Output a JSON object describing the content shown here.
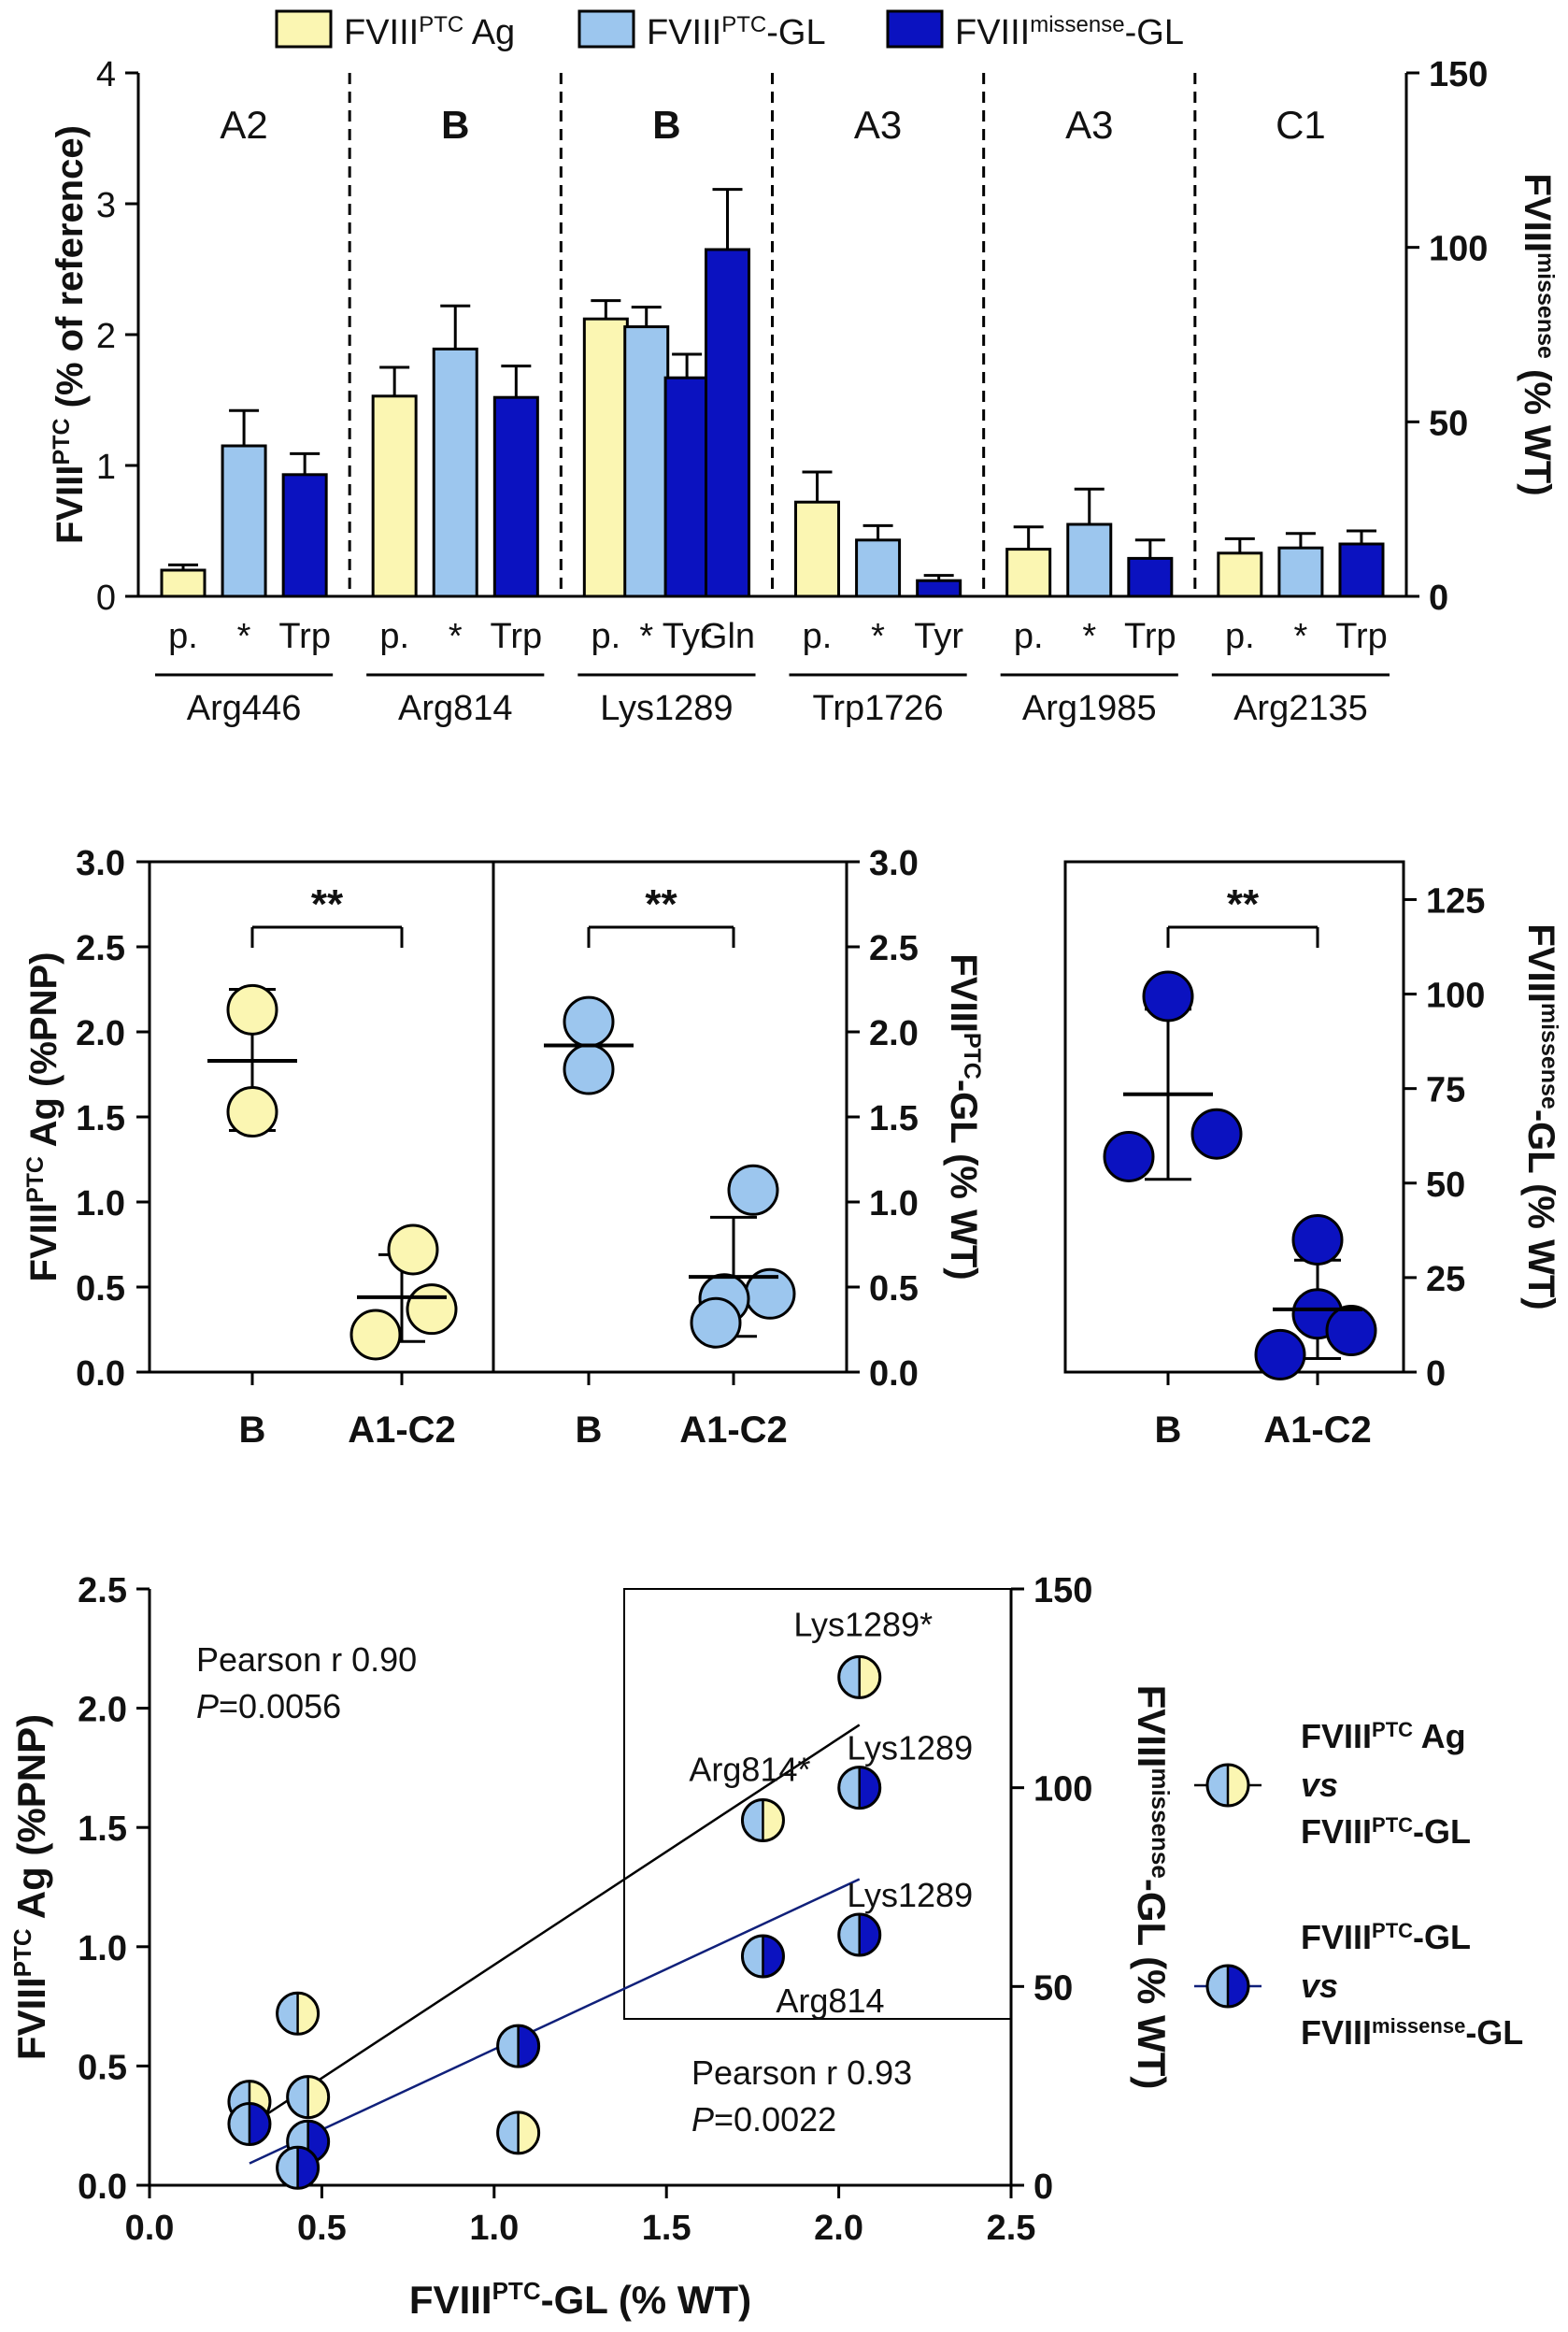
{
  "colors": {
    "ag": "#fbf6b2",
    "ptc_gl": "#9cc6ee",
    "missense_gl": "#0b12c0",
    "fit_ag": "#000000",
    "fit_missense": "#10207a"
  },
  "legend": [
    {
      "base": "FVIII",
      "sup": "PTC",
      "suffix": " Ag",
      "color_key": "ag"
    },
    {
      "base": "FVIII",
      "sup": "PTC",
      "suffix": "-GL",
      "color_key": "ptc_gl"
    },
    {
      "base": "FVIII",
      "sup": "missense",
      "suffix": "-GL",
      "color_key": "missense_gl"
    }
  ],
  "chart_data": [
    {
      "id": "panel-a",
      "type": "bar",
      "y_left": {
        "label_base": "FVIII",
        "label_sup": "PTC",
        "label_suffix": " (% of reference)",
        "lim": [
          0,
          4
        ],
        "ticks": [
          0,
          1,
          2,
          3,
          4
        ]
      },
      "y_right": {
        "label_base": "FVIII",
        "label_sup": "missense",
        "label_suffix": " (% WT)",
        "lim": [
          0,
          150
        ],
        "ticks": [
          0,
          50,
          100,
          150
        ]
      },
      "domains": [
        "A2",
        "B",
        "B",
        "A3",
        "A3",
        "C1"
      ],
      "domain_bold": [
        false,
        true,
        true,
        false,
        false,
        false
      ],
      "groups": [
        {
          "name": "Arg446",
          "bars": [
            {
              "label": "p.",
              "series": "ag",
              "value": 0.2,
              "err": 0.04
            },
            {
              "label": "*",
              "series": "ptc_gl",
              "value": 1.15,
              "err": 0.27
            },
            {
              "label": "Trp",
              "series": "missense_gl",
              "value": 0.93,
              "err": 0.16
            }
          ]
        },
        {
          "name": "Arg814",
          "bars": [
            {
              "label": "p.",
              "series": "ag",
              "value": 1.53,
              "err": 0.22
            },
            {
              "label": "*",
              "series": "ptc_gl",
              "value": 1.89,
              "err": 0.33
            },
            {
              "label": "Trp",
              "series": "missense_gl",
              "value": 1.52,
              "err": 0.24
            }
          ]
        },
        {
          "name": "Lys1289",
          "bars": [
            {
              "label": "p.",
              "series": "ag",
              "value": 2.12,
              "err": 0.14
            },
            {
              "label": "*",
              "series": "ptc_gl",
              "value": 2.06,
              "err": 0.15
            },
            {
              "label": "Tyr",
              "series": "missense_gl",
              "value": 1.67,
              "err": 0.18
            },
            {
              "label": "Gln",
              "series": "missense_gl",
              "value": 2.65,
              "err": 0.46
            }
          ]
        },
        {
          "name": "Trp1726",
          "bars": [
            {
              "label": "p.",
              "series": "ag",
              "value": 0.72,
              "err": 0.23
            },
            {
              "label": "*",
              "series": "ptc_gl",
              "value": 0.43,
              "err": 0.11
            },
            {
              "label": "Tyr",
              "series": "missense_gl",
              "value": 0.12,
              "err": 0.04
            }
          ]
        },
        {
          "name": "Arg1985",
          "bars": [
            {
              "label": "p.",
              "series": "ag",
              "value": 0.36,
              "err": 0.17
            },
            {
              "label": "*",
              "series": "ptc_gl",
              "value": 0.55,
              "err": 0.27
            },
            {
              "label": "Trp",
              "series": "missense_gl",
              "value": 0.29,
              "err": 0.14
            }
          ]
        },
        {
          "name": "Arg2135",
          "bars": [
            {
              "label": "p.",
              "series": "ag",
              "value": 0.33,
              "err": 0.11
            },
            {
              "label": "*",
              "series": "ptc_gl",
              "value": 0.37,
              "err": 0.11
            },
            {
              "label": "Trp",
              "series": "missense_gl",
              "value": 0.4,
              "err": 0.1
            }
          ]
        }
      ]
    },
    {
      "id": "panel-b-ag",
      "type": "scatter",
      "y_label_base": "FVIII",
      "y_label_sup": "PTC",
      "y_label_suffix": " Ag (%PNP)",
      "ylim": [
        0,
        3.0
      ],
      "ticks": [
        "0.0",
        "0.5",
        "1.0",
        "1.5",
        "2.0",
        "2.5",
        "3.0"
      ],
      "categories": [
        "B",
        "A1-C2"
      ],
      "significance": "**",
      "series": "ag",
      "groups": [
        {
          "category": "B",
          "points": [
            2.13,
            1.53
          ],
          "mean": 1.83,
          "sd_low": 1.42,
          "sd_high": 2.25
        },
        {
          "category": "A1-C2",
          "points": [
            0.72,
            0.37,
            0.22
          ],
          "mean": 0.44,
          "sd_low": 0.18,
          "sd_high": 0.69
        }
      ]
    },
    {
      "id": "panel-b-gl",
      "type": "scatter",
      "y_label_base": "FVIII",
      "y_label_sup": "PTC",
      "y_label_suffix": "-GL (% WT)",
      "ylim": [
        0,
        3.0
      ],
      "ticks": [
        "0.0",
        "0.5",
        "1.0",
        "1.5",
        "2.0",
        "2.5",
        "3.0"
      ],
      "categories": [
        "B",
        "A1-C2"
      ],
      "significance": "**",
      "series": "ptc_gl",
      "groups": [
        {
          "category": "B",
          "points": [
            2.06,
            1.78
          ],
          "mean": 1.92,
          "sd_low": 1.72,
          "sd_high": 2.12
        },
        {
          "category": "A1-C2",
          "points": [
            1.07,
            0.46,
            0.43,
            0.29
          ],
          "mean": 0.56,
          "sd_low": 0.21,
          "sd_high": 0.91
        }
      ]
    },
    {
      "id": "panel-b-missense",
      "type": "scatter",
      "y_label_base": "FVIII",
      "y_label_sup": "missense",
      "y_label_suffix": "-GL (% WT)",
      "ylim": [
        0,
        135
      ],
      "ticks": [
        "0",
        "25",
        "50",
        "75",
        "100",
        "125"
      ],
      "categories": [
        "B",
        "A1-C2"
      ],
      "significance": "**",
      "series": "missense_gl",
      "groups": [
        {
          "category": "B",
          "points": [
            99.4,
            63,
            57
          ],
          "mean": 73.5,
          "sd_low": 51,
          "sd_high": 96
        },
        {
          "category": "A1-C2",
          "points": [
            35,
            15.4,
            11,
            4.6
          ],
          "mean": 16.6,
          "sd_low": 3.6,
          "sd_high": 29.6
        }
      ]
    },
    {
      "id": "panel-c",
      "type": "scatter",
      "x_label_base": "FVIII",
      "x_label_sup": "PTC",
      "x_label_suffix": "-GL (% WT)",
      "y_left_label_base": "FVIII",
      "y_left_label_sup": "PTC",
      "y_left_label_suffix": " Ag (%PNP)",
      "y_right_label_base": "FVIII",
      "y_right_label_sup": "missense",
      "y_right_label_suffix": "-GL (% WT)",
      "xlim": [
        0,
        2.5
      ],
      "x_ticks": [
        "0.0",
        "0.5",
        "1.0",
        "1.5",
        "2.0",
        "2.5"
      ],
      "ylim_left": [
        0,
        2.5
      ],
      "y_left_ticks": [
        "0.0",
        "0.5",
        "1.0",
        "1.5",
        "2.0",
        "2.5"
      ],
      "ylim_right": [
        0,
        150
      ],
      "y_right_ticks": [
        "0",
        "50",
        "100",
        "150"
      ],
      "ag_vs_gl": [
        {
          "x": 2.06,
          "y": 2.13,
          "label": "Lys1289*"
        },
        {
          "x": 1.78,
          "y": 1.53,
          "label": "Arg814*"
        },
        {
          "x": 0.43,
          "y": 0.72,
          "label": ""
        },
        {
          "x": 0.29,
          "y": 0.35,
          "label": ""
        },
        {
          "x": 0.46,
          "y": 0.37,
          "label": ""
        },
        {
          "x": 1.07,
          "y": 0.22,
          "label": ""
        }
      ],
      "gl_vs_missense": [
        {
          "x": 2.06,
          "y": 100,
          "label": "Lys1289"
        },
        {
          "x": 2.06,
          "y": 63,
          "label": "Lys1289"
        },
        {
          "x": 1.78,
          "y": 57.6,
          "label": "Arg814"
        },
        {
          "x": 1.07,
          "y": 35,
          "label": ""
        },
        {
          "x": 0.29,
          "y": 15.4,
          "label": ""
        },
        {
          "x": 0.46,
          "y": 11,
          "label": ""
        },
        {
          "x": 0.43,
          "y": 4.4,
          "label": ""
        }
      ],
      "fit_ag": {
        "x": [
          0.29,
          2.06
        ],
        "y": [
          0.25,
          1.93
        ]
      },
      "fit_missense": {
        "x": [
          0.29,
          2.06
        ],
        "y": [
          5.5,
          77
        ]
      },
      "stats_ag": {
        "line1": "Pearson r 0.90",
        "p_italic": "P",
        "p_value": "=0.0056"
      },
      "stats_missense": {
        "line1": "Pearson r 0.93",
        "p_italic": "P",
        "p_value": "=0.0022"
      },
      "legend": [
        {
          "key": "ag_vs_gl",
          "l1_base": "FVIII",
          "l1_sup": "PTC",
          "l1_suffix": " Ag",
          "vs": "vs",
          "l2_base": "FVIII",
          "l2_sup": "PTC",
          "l2_suffix": "-GL"
        },
        {
          "key": "gl_vs_missense",
          "l1_base": "FVIII",
          "l1_sup": "PTC",
          "l1_suffix": "-GL",
          "vs": "vs",
          "l2_base": "FVIII",
          "l2_sup": "missense",
          "l2_suffix": "-GL"
        }
      ]
    }
  ]
}
